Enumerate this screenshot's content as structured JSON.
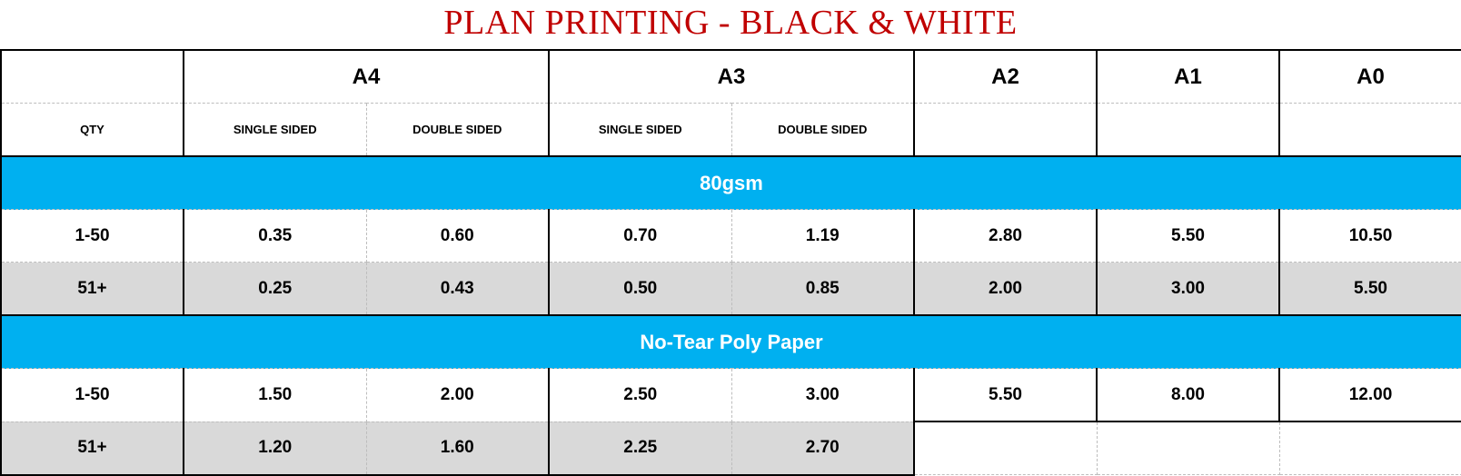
{
  "title": "PLAN PRINTING - BLACK & WHITE",
  "header": {
    "sizes": [
      "A4",
      "A3",
      "A2",
      "A1",
      "A0"
    ],
    "qty_label": "QTY",
    "single_sided": "SINGLE SIDED",
    "double_sided": "DOUBLE SIDED"
  },
  "colors": {
    "title": "#c00000",
    "band": "#00b0f0",
    "alt_row": "#d9d9d9"
  },
  "sections": [
    {
      "name": "80gsm",
      "rows": [
        {
          "qty": "1-50",
          "values": [
            "0.35",
            "0.60",
            "0.70",
            "1.19",
            "2.80",
            "5.50",
            "10.50"
          ]
        },
        {
          "qty": "51+",
          "values": [
            "0.25",
            "0.43",
            "0.50",
            "0.85",
            "2.00",
            "3.00",
            "5.50"
          ]
        }
      ]
    },
    {
      "name": "No-Tear Poly Paper",
      "rows": [
        {
          "qty": "1-50",
          "values": [
            "1.50",
            "2.00",
            "2.50",
            "3.00",
            "5.50",
            "8.00",
            "12.00"
          ]
        },
        {
          "qty": "51+",
          "values": [
            "1.20",
            "1.60",
            "2.25",
            "2.70"
          ]
        }
      ]
    }
  ]
}
